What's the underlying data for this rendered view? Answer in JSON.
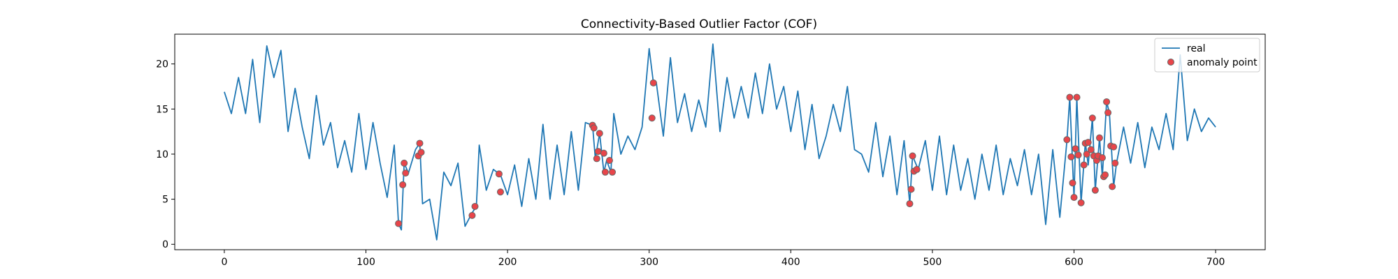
{
  "chart_data": {
    "type": "line",
    "title": "Connectivity-Based Outlier Factor (COF)",
    "xlabel": "",
    "ylabel": "",
    "xlim": [
      -35,
      735
    ],
    "ylim": [
      -0.6,
      23.3
    ],
    "xticks": [
      0,
      100,
      200,
      300,
      400,
      500,
      600,
      700
    ],
    "yticks": [
      0,
      5,
      10,
      15,
      20
    ],
    "grid": false,
    "legend": "top-right",
    "colors": {
      "real": "#1f77b4",
      "anomaly_fill": "#e8454a",
      "anomaly_edge": "#666666"
    },
    "series": [
      {
        "name": "real",
        "kind": "line",
        "points": [
          [
            0,
            16.9
          ],
          [
            5,
            14.5
          ],
          [
            10,
            18.5
          ],
          [
            15,
            14.5
          ],
          [
            20,
            20.5
          ],
          [
            25,
            13.5
          ],
          [
            30,
            22.0
          ],
          [
            35,
            18.5
          ],
          [
            40,
            21.5
          ],
          [
            45,
            12.5
          ],
          [
            50,
            17.3
          ],
          [
            55,
            13.0
          ],
          [
            60,
            9.5
          ],
          [
            65,
            16.5
          ],
          [
            70,
            11.0
          ],
          [
            75,
            13.5
          ],
          [
            80,
            8.5
          ],
          [
            85,
            11.5
          ],
          [
            90,
            8.0
          ],
          [
            95,
            14.5
          ],
          [
            100,
            8.3
          ],
          [
            105,
            13.5
          ],
          [
            110,
            9.0
          ],
          [
            115,
            5.2
          ],
          [
            120,
            11.0
          ],
          [
            123,
            2.3
          ],
          [
            125,
            1.6
          ],
          [
            127,
            9.0
          ],
          [
            130,
            7.9
          ],
          [
            135,
            10.5
          ],
          [
            138,
            11.2
          ],
          [
            140,
            4.5
          ],
          [
            145,
            5.0
          ],
          [
            150,
            0.5
          ],
          [
            155,
            8.0
          ],
          [
            160,
            6.5
          ],
          [
            165,
            9.0
          ],
          [
            170,
            2.0
          ],
          [
            175,
            3.5
          ],
          [
            178,
            4.2
          ],
          [
            180,
            11.0
          ],
          [
            185,
            6.0
          ],
          [
            190,
            8.3
          ],
          [
            195,
            7.7
          ],
          [
            200,
            5.5
          ],
          [
            205,
            8.8
          ],
          [
            210,
            4.2
          ],
          [
            215,
            9.5
          ],
          [
            220,
            5.0
          ],
          [
            225,
            13.3
          ],
          [
            230,
            5.0
          ],
          [
            235,
            11.0
          ],
          [
            240,
            5.5
          ],
          [
            245,
            12.5
          ],
          [
            250,
            6.0
          ],
          [
            255,
            13.5
          ],
          [
            260,
            13.2
          ],
          [
            262,
            9.5
          ],
          [
            265,
            12.3
          ],
          [
            268,
            8.0
          ],
          [
            270,
            9.3
          ],
          [
            273,
            8.0
          ],
          [
            275,
            14.5
          ],
          [
            280,
            10.0
          ],
          [
            285,
            12.0
          ],
          [
            290,
            10.5
          ],
          [
            295,
            13.0
          ],
          [
            300,
            21.7
          ],
          [
            303,
            17.9
          ],
          [
            305,
            18.0
          ],
          [
            310,
            12.0
          ],
          [
            315,
            20.7
          ],
          [
            320,
            13.5
          ],
          [
            325,
            16.7
          ],
          [
            330,
            12.5
          ],
          [
            335,
            16.0
          ],
          [
            340,
            13.0
          ],
          [
            345,
            22.2
          ],
          [
            350,
            12.5
          ],
          [
            355,
            18.5
          ],
          [
            360,
            14.0
          ],
          [
            365,
            17.5
          ],
          [
            370,
            14.0
          ],
          [
            375,
            19.0
          ],
          [
            380,
            14.5
          ],
          [
            385,
            20.0
          ],
          [
            390,
            15.0
          ],
          [
            395,
            17.5
          ],
          [
            400,
            12.5
          ],
          [
            405,
            17.0
          ],
          [
            410,
            10.5
          ],
          [
            415,
            15.5
          ],
          [
            420,
            9.5
          ],
          [
            425,
            12.0
          ],
          [
            430,
            15.5
          ],
          [
            435,
            12.5
          ],
          [
            440,
            17.5
          ],
          [
            445,
            10.5
          ],
          [
            450,
            10.0
          ],
          [
            455,
            8.0
          ],
          [
            460,
            13.5
          ],
          [
            465,
            7.5
          ],
          [
            470,
            12.0
          ],
          [
            475,
            5.5
          ],
          [
            480,
            11.5
          ],
          [
            484,
            4.5
          ],
          [
            486,
            9.8
          ],
          [
            490,
            8.3
          ],
          [
            495,
            11.5
          ],
          [
            500,
            6.0
          ],
          [
            505,
            12.0
          ],
          [
            510,
            5.5
          ],
          [
            515,
            11.0
          ],
          [
            520,
            6.0
          ],
          [
            525,
            9.5
          ],
          [
            530,
            5.0
          ],
          [
            535,
            10.0
          ],
          [
            540,
            6.0
          ],
          [
            545,
            11.0
          ],
          [
            550,
            5.5
          ],
          [
            555,
            9.5
          ],
          [
            560,
            6.5
          ],
          [
            565,
            10.5
          ],
          [
            570,
            5.5
          ],
          [
            575,
            10.0
          ],
          [
            580,
            2.2
          ],
          [
            585,
            10.5
          ],
          [
            590,
            3.0
          ],
          [
            595,
            11.5
          ],
          [
            597,
            16.3
          ],
          [
            600,
            5.2
          ],
          [
            602,
            16.3
          ],
          [
            605,
            4.6
          ],
          [
            608,
            11.3
          ],
          [
            610,
            8.8
          ],
          [
            613,
            14.0
          ],
          [
            615,
            6.0
          ],
          [
            618,
            11.8
          ],
          [
            620,
            7.5
          ],
          [
            623,
            15.8
          ],
          [
            625,
            14.6
          ],
          [
            628,
            6.4
          ],
          [
            630,
            9.0
          ],
          [
            635,
            13.0
          ],
          [
            640,
            9.0
          ],
          [
            645,
            13.5
          ],
          [
            650,
            8.5
          ],
          [
            655,
            13.0
          ],
          [
            660,
            10.5
          ],
          [
            665,
            14.5
          ],
          [
            670,
            10.5
          ],
          [
            675,
            21.0
          ],
          [
            680,
            11.5
          ],
          [
            685,
            15.0
          ],
          [
            690,
            12.5
          ],
          [
            695,
            14.0
          ],
          [
            700,
            13.0
          ]
        ]
      },
      {
        "name": "anomaly point",
        "kind": "scatter",
        "points": [
          [
            123,
            2.3
          ],
          [
            126,
            6.6
          ],
          [
            127,
            9.0
          ],
          [
            128,
            7.9
          ],
          [
            137,
            9.8
          ],
          [
            138,
            11.2
          ],
          [
            139,
            10.2
          ],
          [
            175,
            3.2
          ],
          [
            177,
            4.2
          ],
          [
            194,
            7.8
          ],
          [
            195,
            5.8
          ],
          [
            260,
            13.2
          ],
          [
            261,
            12.9
          ],
          [
            263,
            9.5
          ],
          [
            264,
            10.3
          ],
          [
            265,
            12.3
          ],
          [
            268,
            10.1
          ],
          [
            269,
            8.0
          ],
          [
            272,
            9.3
          ],
          [
            274,
            8.0
          ],
          [
            302,
            14.0
          ],
          [
            303,
            17.9
          ],
          [
            484,
            4.5
          ],
          [
            486,
            9.8
          ],
          [
            487,
            8.1
          ],
          [
            489,
            8.3
          ],
          [
            485,
            6.1
          ],
          [
            595,
            11.6
          ],
          [
            597,
            16.3
          ],
          [
            598,
            9.7
          ],
          [
            599,
            6.8
          ],
          [
            600,
            5.2
          ],
          [
            601,
            10.6
          ],
          [
            602,
            16.3
          ],
          [
            603,
            9.9
          ],
          [
            605,
            4.6
          ],
          [
            607,
            8.8
          ],
          [
            608,
            11.2
          ],
          [
            609,
            10.0
          ],
          [
            610,
            11.3
          ],
          [
            612,
            10.5
          ],
          [
            613,
            14.0
          ],
          [
            614,
            9.8
          ],
          [
            615,
            6.0
          ],
          [
            616,
            9.3
          ],
          [
            617,
            9.8
          ],
          [
            618,
            11.8
          ],
          [
            620,
            9.6
          ],
          [
            621,
            7.5
          ],
          [
            622,
            7.7
          ],
          [
            623,
            15.8
          ],
          [
            624,
            14.6
          ],
          [
            626,
            10.9
          ],
          [
            627,
            6.4
          ],
          [
            628,
            10.8
          ],
          [
            629,
            9.0
          ]
        ]
      }
    ]
  }
}
